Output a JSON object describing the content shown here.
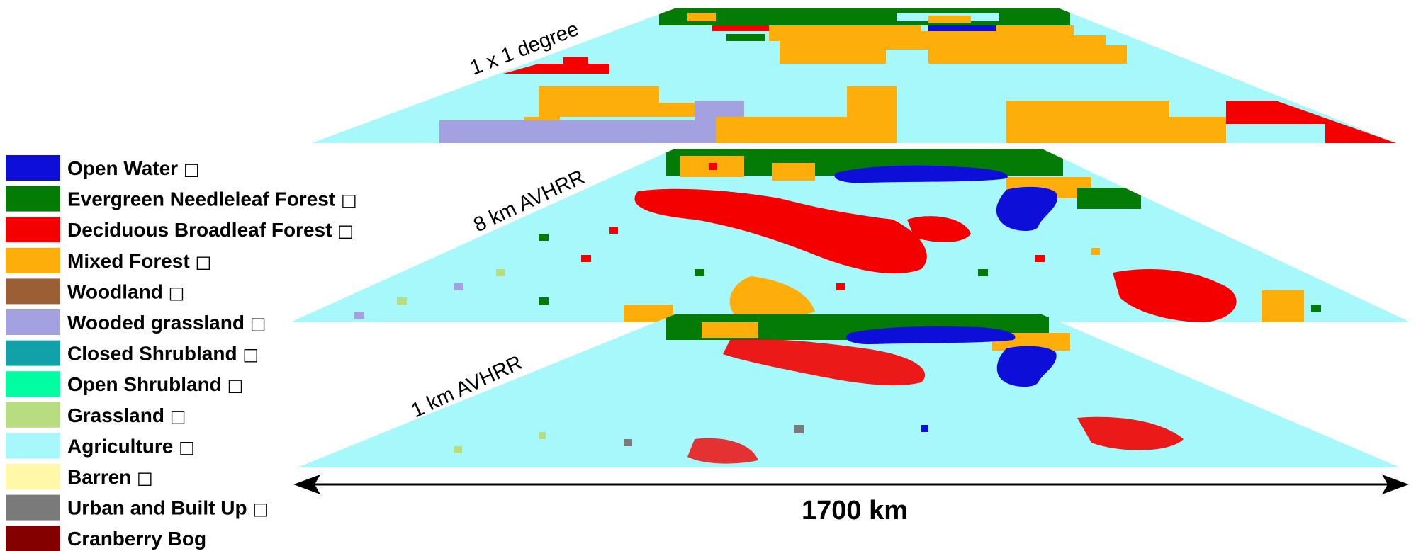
{
  "layers": [
    {
      "label": "1 x 1 degree",
      "resolution": "coarse"
    },
    {
      "label": "8 km AVHRR",
      "resolution": "medium"
    },
    {
      "label": "1 km AVHRR",
      "resolution": "fine"
    }
  ],
  "scale": {
    "label": "1700 km"
  },
  "legend": [
    {
      "label": "Open Water",
      "color": "#0d0fd8",
      "marker": "□"
    },
    {
      "label": "Evergreen Needleleaf Forest",
      "color": "#037b05",
      "marker": "□"
    },
    {
      "label": "Deciduous Broadleaf Forest",
      "color": "#f40000",
      "marker": "□"
    },
    {
      "label": "Mixed Forest",
      "color": "#fdae0b",
      "marker": "□"
    },
    {
      "label": "Woodland",
      "color": "#9a5f35",
      "marker": "□"
    },
    {
      "label": "Wooded grassland",
      "color": "#a3a1df",
      "marker": "□"
    },
    {
      "label": "Closed Shrubland",
      "color": "#12a0a9",
      "marker": "□"
    },
    {
      "label": "Open Shrubland",
      "color": "#00fda1",
      "marker": "□"
    },
    {
      "label": "Grassland",
      "color": "#b8dd80",
      "marker": "□"
    },
    {
      "label": "Agriculture",
      "color": "#a7f8fb",
      "marker": "□"
    },
    {
      "label": "Barren",
      "color": "#fff8a8",
      "marker": "□"
    },
    {
      "label": "Urban and Built Up",
      "color": "#7a7a7a",
      "marker": "□"
    },
    {
      "label": "Cranberry Bog",
      "color": "#840000",
      "marker": ""
    }
  ]
}
